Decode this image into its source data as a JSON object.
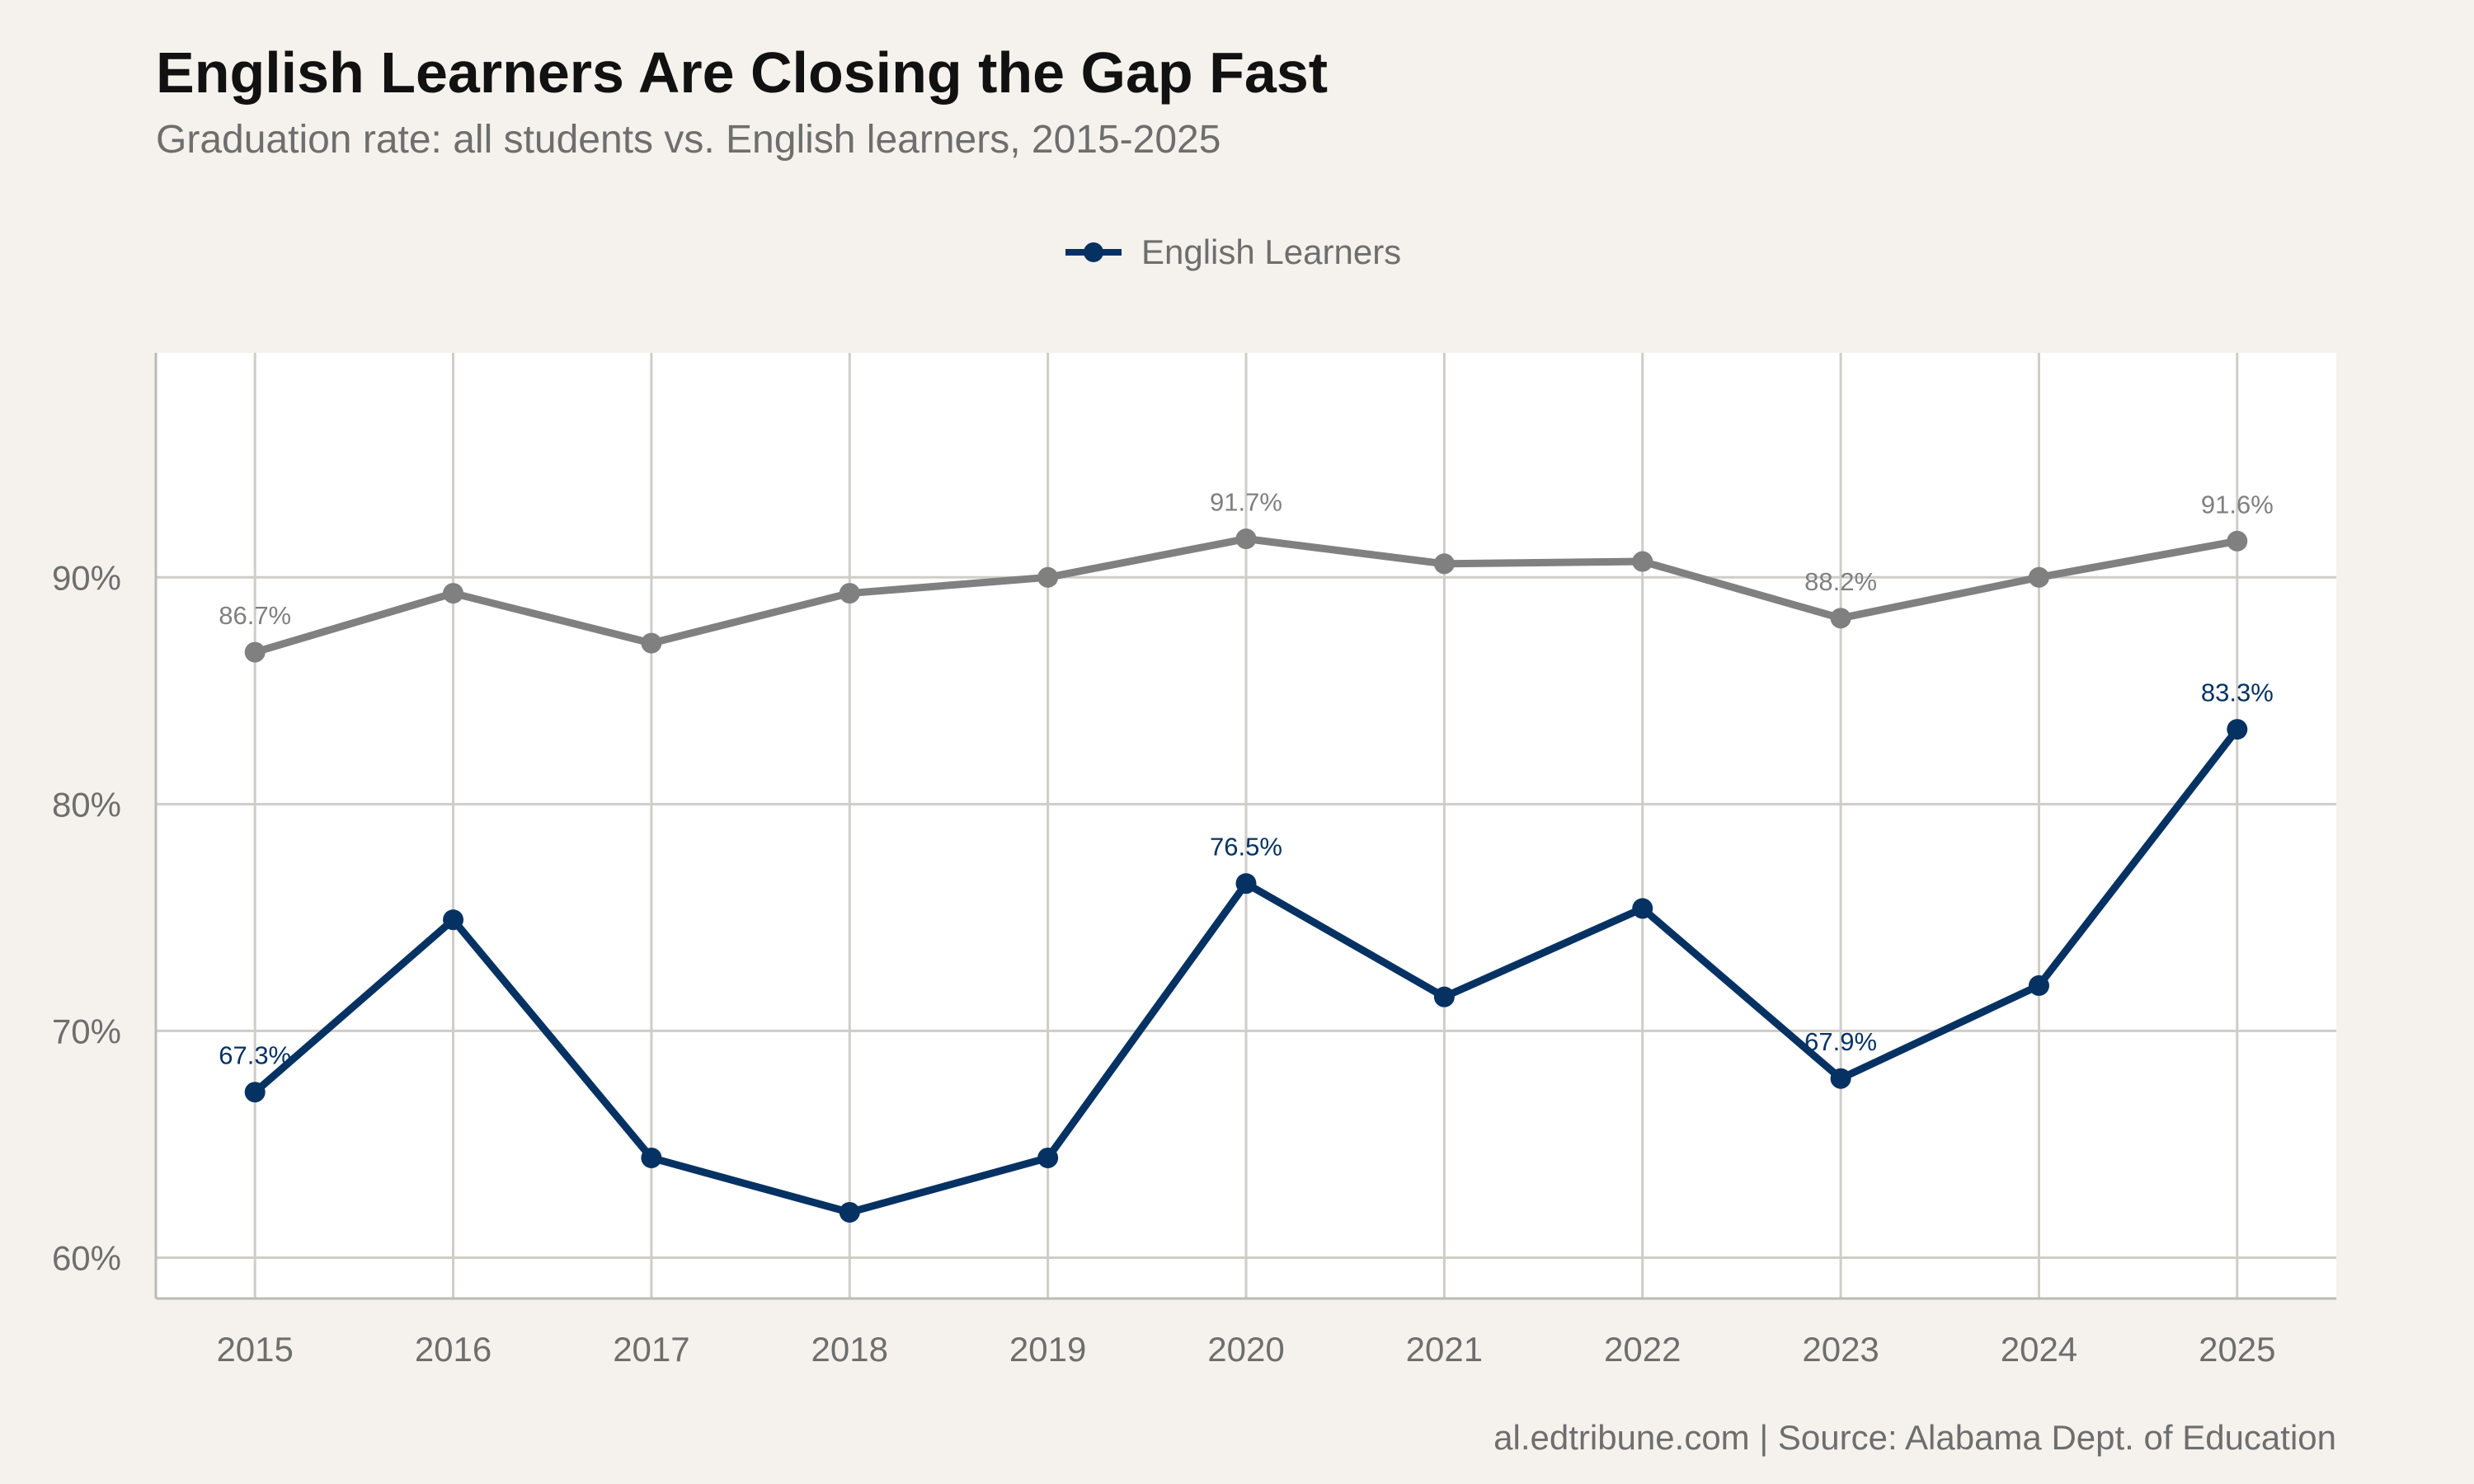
{
  "chart_data": {
    "type": "line",
    "title": "English Learners Are Closing the Gap Fast",
    "subtitle": "Graduation rate: all students vs. English learners, 2015-2025",
    "caption": "al.edtribune.com | Source: Alabama Dept. of Education",
    "xlabel": "",
    "ylabel": "",
    "x": [
      2015,
      2016,
      2017,
      2018,
      2019,
      2020,
      2021,
      2022,
      2023,
      2024,
      2025
    ],
    "ylim": [
      58.2,
      99.9
    ],
    "yticks": [
      60,
      70,
      80,
      90
    ],
    "ytick_labels": [
      "60%",
      "70%",
      "80%",
      "90%"
    ],
    "grid": true,
    "legend": {
      "placement": "top",
      "entries": [
        "English Learners"
      ]
    },
    "series": [
      {
        "name": "",
        "color": "#808080",
        "values": [
          86.7,
          89.3,
          87.1,
          89.3,
          90.0,
          91.7,
          90.6,
          90.7,
          88.2,
          90.0,
          91.6
        ],
        "labeled_points": [
          {
            "x": 2015,
            "label": "86.7%"
          },
          {
            "x": 2020,
            "label": "91.7%"
          },
          {
            "x": 2023,
            "label": "88.2%"
          },
          {
            "x": 2025,
            "label": "91.6%"
          }
        ]
      },
      {
        "name": "English Learners",
        "color": "#063263",
        "values": [
          67.3,
          74.9,
          64.4,
          62.0,
          64.4,
          76.5,
          71.5,
          75.4,
          67.9,
          72.0,
          83.3
        ],
        "labeled_points": [
          {
            "x": 2015,
            "label": "67.3%"
          },
          {
            "x": 2020,
            "label": "76.5%"
          },
          {
            "x": 2023,
            "label": "67.9%"
          },
          {
            "x": 2025,
            "label": "83.3%"
          }
        ]
      }
    ]
  }
}
